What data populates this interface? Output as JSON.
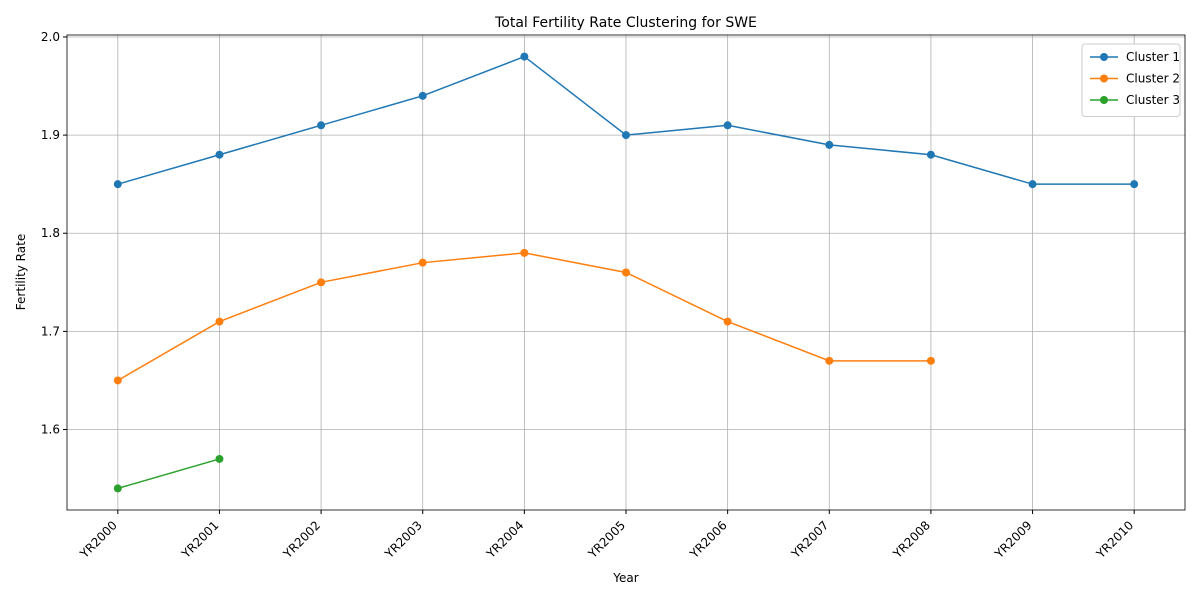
{
  "chart_data": {
    "type": "line",
    "title": "Total Fertility Rate Clustering for SWE",
    "xlabel": "Year",
    "ylabel": "Fertility Rate",
    "categories": [
      "YR2000",
      "YR2001",
      "YR2002",
      "YR2003",
      "YR2004",
      "YR2005",
      "YR2006",
      "YR2007",
      "YR2008",
      "YR2009",
      "YR2010"
    ],
    "series": [
      {
        "name": "Cluster 1",
        "color": "#1f77b4",
        "values": [
          1.85,
          1.88,
          1.91,
          1.94,
          1.98,
          1.9,
          1.91,
          1.89,
          1.88,
          1.85,
          1.85
        ]
      },
      {
        "name": "Cluster 2",
        "color": "#ff7f0e",
        "values": [
          1.65,
          1.71,
          1.75,
          1.77,
          1.78,
          1.76,
          1.71,
          1.67,
          1.67,
          null,
          null
        ]
      },
      {
        "name": "Cluster 3",
        "color": "#2ca02c",
        "values": [
          1.54,
          1.57,
          null,
          null,
          null,
          null,
          null,
          null,
          null,
          null,
          null
        ]
      }
    ],
    "ylim": [
      1.518,
      2.002
    ],
    "yticks": [
      1.6,
      1.7,
      1.8,
      1.9,
      {
        "value": 2,
        "label": "2.0"
      }
    ],
    "grid": true,
    "legend": "upper right"
  }
}
